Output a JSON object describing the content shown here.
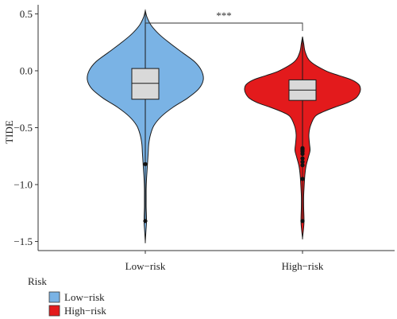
{
  "chart_data": {
    "type": "violin",
    "ylabel": "TIDE",
    "ylim": [
      -1.58,
      0.58
    ],
    "yticks": [
      {
        "value": 0.5,
        "label": "0.5"
      },
      {
        "value": 0.0,
        "label": "0.0"
      },
      {
        "value": -0.5,
        "label": "−0.5"
      },
      {
        "value": -1.0,
        "label": "−1.0"
      },
      {
        "value": -1.5,
        "label": "−1.5"
      }
    ],
    "categories": [
      "Low−risk",
      "High−risk"
    ],
    "series": [
      {
        "name": "Low−risk",
        "color": "#7ab3e5",
        "box": {
          "q1": -0.25,
          "median": -0.11,
          "q3": 0.02,
          "whisker_low": -0.8,
          "whisker_high": 0.53
        },
        "outliers": [
          -0.82,
          -1.32
        ],
        "density": [
          [
            0.53,
            0.0
          ],
          [
            0.47,
            0.03
          ],
          [
            0.4,
            0.1
          ],
          [
            0.32,
            0.24
          ],
          [
            0.24,
            0.43
          ],
          [
            0.16,
            0.64
          ],
          [
            0.08,
            0.85
          ],
          [
            0.0,
            0.97
          ],
          [
            -0.08,
            1.0
          ],
          [
            -0.16,
            0.92
          ],
          [
            -0.24,
            0.73
          ],
          [
            -0.32,
            0.48
          ],
          [
            -0.4,
            0.28
          ],
          [
            -0.48,
            0.15
          ],
          [
            -0.56,
            0.09
          ],
          [
            -0.64,
            0.06
          ],
          [
            -0.72,
            0.05
          ],
          [
            -0.8,
            0.04
          ],
          [
            -0.88,
            0.03
          ],
          [
            -0.96,
            0.02
          ],
          [
            -1.04,
            0.015
          ],
          [
            -1.12,
            0.015
          ],
          [
            -1.2,
            0.015
          ],
          [
            -1.28,
            0.02
          ],
          [
            -1.34,
            0.02
          ],
          [
            -1.4,
            0.012
          ],
          [
            -1.5,
            0.0
          ]
        ]
      },
      {
        "name": "High−risk",
        "color": "#e31a1c",
        "box": {
          "q1": -0.26,
          "median": -0.17,
          "q3": -0.08,
          "whisker_low": -0.67,
          "whisker_high": 0.28
        },
        "outliers": [
          -0.68,
          -0.69,
          -0.7,
          -0.71,
          -0.73,
          -0.77,
          -0.8,
          -0.83,
          -0.95,
          -1.32
        ],
        "density": [
          [
            0.3,
            0.0
          ],
          [
            0.24,
            0.02
          ],
          [
            0.16,
            0.05
          ],
          [
            0.08,
            0.14
          ],
          [
            0.0,
            0.4
          ],
          [
            -0.04,
            0.62
          ],
          [
            -0.08,
            0.85
          ],
          [
            -0.12,
            0.97
          ],
          [
            -0.16,
            1.0
          ],
          [
            -0.2,
            0.98
          ],
          [
            -0.24,
            0.92
          ],
          [
            -0.28,
            0.78
          ],
          [
            -0.32,
            0.56
          ],
          [
            -0.36,
            0.36
          ],
          [
            -0.4,
            0.22
          ],
          [
            -0.48,
            0.14
          ],
          [
            -0.56,
            0.11
          ],
          [
            -0.64,
            0.12
          ],
          [
            -0.7,
            0.13
          ],
          [
            -0.76,
            0.1
          ],
          [
            -0.84,
            0.06
          ],
          [
            -0.92,
            0.04
          ],
          [
            -1.0,
            0.03
          ],
          [
            -1.1,
            0.02
          ],
          [
            -1.2,
            0.02
          ],
          [
            -1.28,
            0.025
          ],
          [
            -1.34,
            0.025
          ],
          [
            -1.4,
            0.015
          ],
          [
            -1.47,
            0.0
          ]
        ]
      }
    ],
    "significance": {
      "label": "***",
      "between": [
        "Low−risk",
        "High−risk"
      ]
    },
    "legend": {
      "title": "Risk",
      "position": "bottom-left",
      "items": [
        {
          "label": "Low−risk",
          "color": "#7ab3e5"
        },
        {
          "label": "High−risk",
          "color": "#e31a1c"
        }
      ]
    },
    "grid": false
  }
}
